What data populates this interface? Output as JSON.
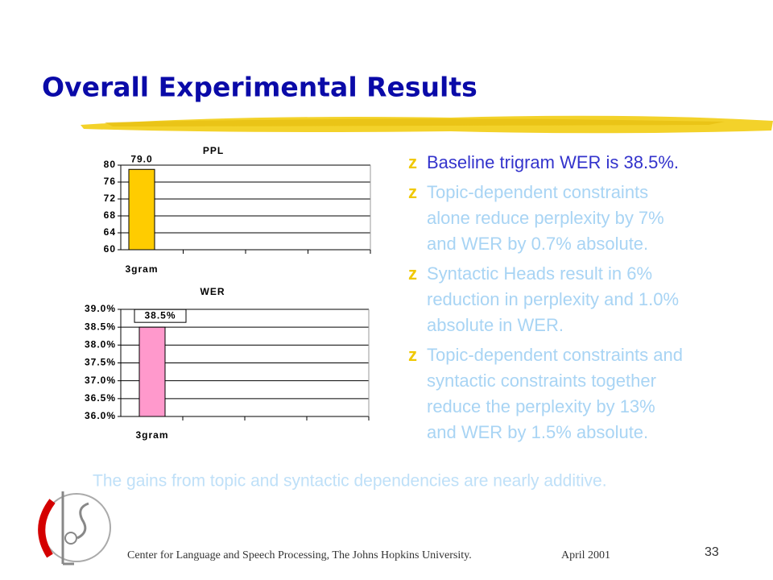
{
  "title": "Overall Experimental Results",
  "bullets": [
    {
      "lines": [
        "Baseline trigram WER is 38.5%."
      ]
    },
    {
      "lines": [
        "Topic-dependent constraints",
        "alone reduce perplexity by 7%",
        "and WER by 0.7% absolute."
      ]
    },
    {
      "lines": [
        "Syntactic Heads result in 6%",
        "reduction in perplexity and 1.0%",
        "absolute in WER."
      ]
    },
    {
      "lines": [
        "Topic-dependent constraints and",
        "syntactic constraints together",
        "reduce the perplexity by 13%",
        "and WER by 1.5% absolute."
      ]
    }
  ],
  "note": "The gains from topic and syntactic dependencies are nearly additive.",
  "footer": {
    "affiliation": "Center for Language and Speech Processing, The Johns Hopkins University.",
    "date": "April 2001",
    "page": "33"
  },
  "chart_data": [
    {
      "type": "bar",
      "title": "PPL",
      "categories": [
        "3gram"
      ],
      "values": [
        79.0
      ],
      "value_labels": [
        "79.0"
      ],
      "color": "#ffcc00",
      "ylim": [
        60,
        80
      ],
      "yticks": [
        60,
        64,
        68,
        72,
        76,
        80
      ],
      "grid": true
    },
    {
      "type": "bar",
      "title": "WER",
      "categories": [
        "3gram"
      ],
      "values": [
        38.5
      ],
      "value_labels": [
        "38.5%"
      ],
      "color": "#ff99cc",
      "ylim": [
        36,
        39
      ],
      "yticks": [
        {
          "value": 36,
          "label": "36.0%"
        },
        {
          "value": 36.5,
          "label": "36.5%"
        },
        {
          "value": 37,
          "label": "37.0%"
        },
        {
          "value": 37.5,
          "label": "37.5%"
        },
        {
          "value": 38,
          "label": "38.0%"
        },
        {
          "value": 38.5,
          "label": "38.5%"
        },
        {
          "value": 39,
          "label": "39.0%"
        }
      ],
      "grid": true
    }
  ]
}
